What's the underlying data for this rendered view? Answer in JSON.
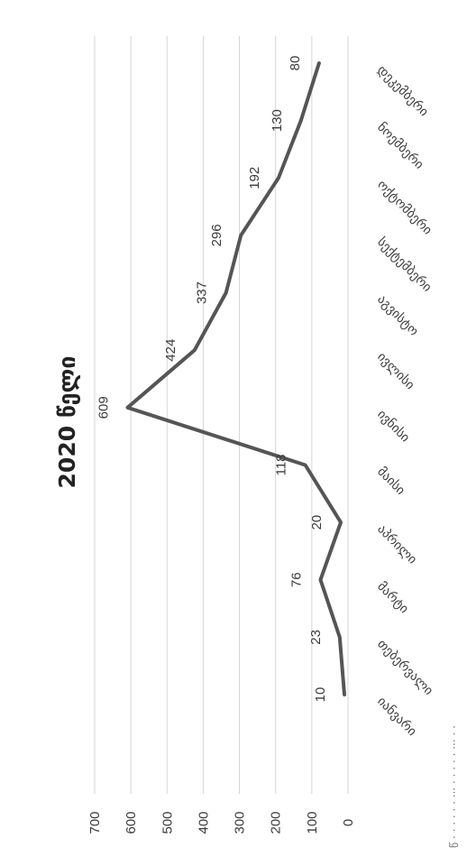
{
  "page": {
    "top_text": "წ  ·  ·  ·  ·  ·  ·  ···  ·  ·  ·  ·  ·  ···  ·  ·"
  },
  "chart_data": {
    "type": "line",
    "title": "2020 წელი",
    "categories": [
      "იანვარი",
      "თებერვალი",
      "მარტი",
      "აპრილი",
      "მაისი",
      "ივნისი",
      "ივლისი",
      "აგვისტო",
      "სექტემბერი",
      "ოქტომბერი",
      "ნოემბერი",
      "დეკემბერი"
    ],
    "values": [
      10,
      23,
      76,
      20,
      118,
      609,
      424,
      337,
      296,
      192,
      130,
      80
    ],
    "yticks": [
      "0",
      "100",
      "200",
      "300",
      "400",
      "500",
      "600",
      "700"
    ],
    "ylim": [
      0,
      700
    ],
    "grid": true,
    "legend": "none",
    "orientation": "rotated-90-clockwise",
    "line_color": "#555555"
  }
}
